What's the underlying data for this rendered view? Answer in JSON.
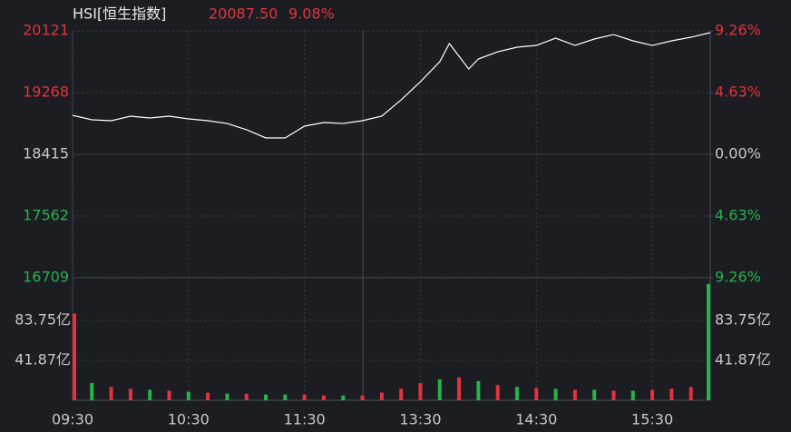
{
  "chart_data": [
    {
      "type": "line",
      "title": "HSI[恒生指数]",
      "header_price": "20087.50",
      "header_change": "9.08%",
      "xlim": [
        0,
        330
      ],
      "xticks": [
        {
          "value": 0,
          "label": "09:30"
        },
        {
          "value": 60,
          "label": "10:30"
        },
        {
          "value": 120,
          "label": "11:30"
        },
        {
          "value": 180,
          "label": "13:30"
        },
        {
          "value": 240,
          "label": "14:30"
        },
        {
          "value": 300,
          "label": "15:30"
        }
      ],
      "ylim": [
        16709,
        20121
      ],
      "yticks": [
        20121,
        19268,
        18415,
        17562,
        16709
      ],
      "y2lim": [
        -9.26,
        9.26
      ],
      "y2ticks": [
        {
          "value": 9.26,
          "label": "9.26%"
        },
        {
          "value": 4.63,
          "label": "4.63%"
        },
        {
          "value": 0,
          "label": "0.00%"
        },
        {
          "value": -4.63,
          "label": "4.63%"
        },
        {
          "value": -9.26,
          "label": "9.26%"
        }
      ],
      "grid": true,
      "up_color": "#e5323c",
      "down_color": "#25b34a",
      "flat_color": "#c8c8c8",
      "x": [
        0,
        10,
        20,
        30,
        40,
        50,
        60,
        70,
        80,
        90,
        100,
        110,
        120,
        130,
        140,
        150,
        160,
        170,
        180,
        190,
        195,
        205,
        210,
        220,
        230,
        240,
        250,
        260,
        270,
        280,
        290,
        300,
        310,
        320,
        330
      ],
      "series": [
        {
          "name": "HSI",
          "color": "#ffffff",
          "values": [
            18954,
            18892,
            18879,
            18942,
            18917,
            18942,
            18904,
            18879,
            18841,
            18754,
            18641,
            18641,
            18804,
            18854,
            18841,
            18879,
            18942,
            19167,
            19418,
            19694,
            19945,
            19594,
            19732,
            19832,
            19895,
            19920,
            20020,
            19920,
            20008,
            20070,
            19983,
            19920,
            19983,
            20033,
            20096
          ]
        }
      ]
    },
    {
      "type": "bar",
      "xlim": [
        0,
        330
      ],
      "ylim": [
        0,
        128.5
      ],
      "yticks": [
        {
          "value": 83.75,
          "label": "83.75亿"
        },
        {
          "value": 41.87,
          "label": "41.87亿"
        }
      ],
      "x": [
        0,
        10,
        20,
        30,
        40,
        50,
        60,
        70,
        80,
        90,
        100,
        110,
        120,
        130,
        140,
        150,
        160,
        170,
        180,
        190,
        200,
        210,
        220,
        230,
        240,
        250,
        260,
        270,
        280,
        290,
        300,
        310,
        320,
        330
      ],
      "series": [
        {
          "name": "volume",
          "values": [
            91,
            18,
            14,
            12,
            11,
            10,
            9,
            8,
            7,
            7,
            6,
            6,
            6,
            5,
            5,
            5,
            8,
            12,
            18,
            22,
            24,
            20,
            16,
            14,
            13,
            12,
            11,
            11,
            10,
            10,
            11,
            12,
            14,
            122
          ],
          "colors": [
            "#e5323c",
            "#25b34a",
            "#e5323c",
            "#e5323c",
            "#25b34a",
            "#e5323c",
            "#25b34a",
            "#e5323c",
            "#25b34a",
            "#e5323c",
            "#25b34a",
            "#25b34a",
            "#e5323c",
            "#e5323c",
            "#25b34a",
            "#e5323c",
            "#e5323c",
            "#e5323c",
            "#e5323c",
            "#25b34a",
            "#e5323c",
            "#25b34a",
            "#e5323c",
            "#25b34a",
            "#e5323c",
            "#25b34a",
            "#e5323c",
            "#25b34a",
            "#e5323c",
            "#25b34a",
            "#e5323c",
            "#e5323c",
            "#e5323c",
            "#25b34a"
          ]
        }
      ]
    }
  ]
}
